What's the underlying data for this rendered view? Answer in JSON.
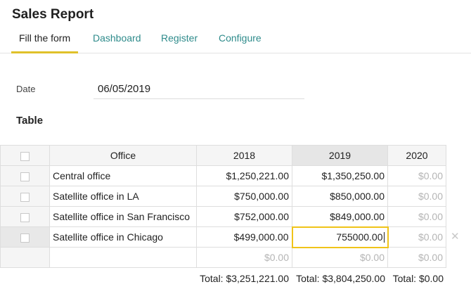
{
  "app": {
    "title": "Sales Report"
  },
  "tabs": [
    {
      "label": "Fill the form"
    },
    {
      "label": "Dashboard"
    },
    {
      "label": "Register"
    },
    {
      "label": "Configure"
    }
  ],
  "form": {
    "date_label": "Date",
    "date_value": "06/05/2019"
  },
  "table": {
    "section_title": "Table",
    "columns": [
      "Office",
      "2018",
      "2019",
      "2020"
    ],
    "rows": [
      {
        "office": "Central office",
        "y2018": "$1,250,221.00",
        "y2019": "$1,350,250.00",
        "y2020": "$0.00"
      },
      {
        "office": "Satellite office in LA",
        "y2018": "$750,000.00",
        "y2019": "$850,000.00",
        "y2020": "$0.00"
      },
      {
        "office": "Satellite office in San Francisco",
        "y2018": "$752,000.00",
        "y2019": "$849,000.00",
        "y2020": "$0.00"
      },
      {
        "office": "Satellite office in Chicago",
        "y2018": "$499,000.00",
        "y2019": "755000.00",
        "y2020": "$0.00"
      },
      {
        "office": "",
        "y2018": "$0.00",
        "y2019": "$0.00",
        "y2020": "$0.00"
      }
    ],
    "totals": {
      "y2018": "Total: $3,251,221.00",
      "y2019": "Total: $3,804,250.00",
      "y2020": "Total: $0.00"
    },
    "remove_icon": "close-icon"
  },
  "colors": {
    "accent": "#e0c12a",
    "link": "#2e8b8b",
    "editing_border": "#f0c419"
  }
}
